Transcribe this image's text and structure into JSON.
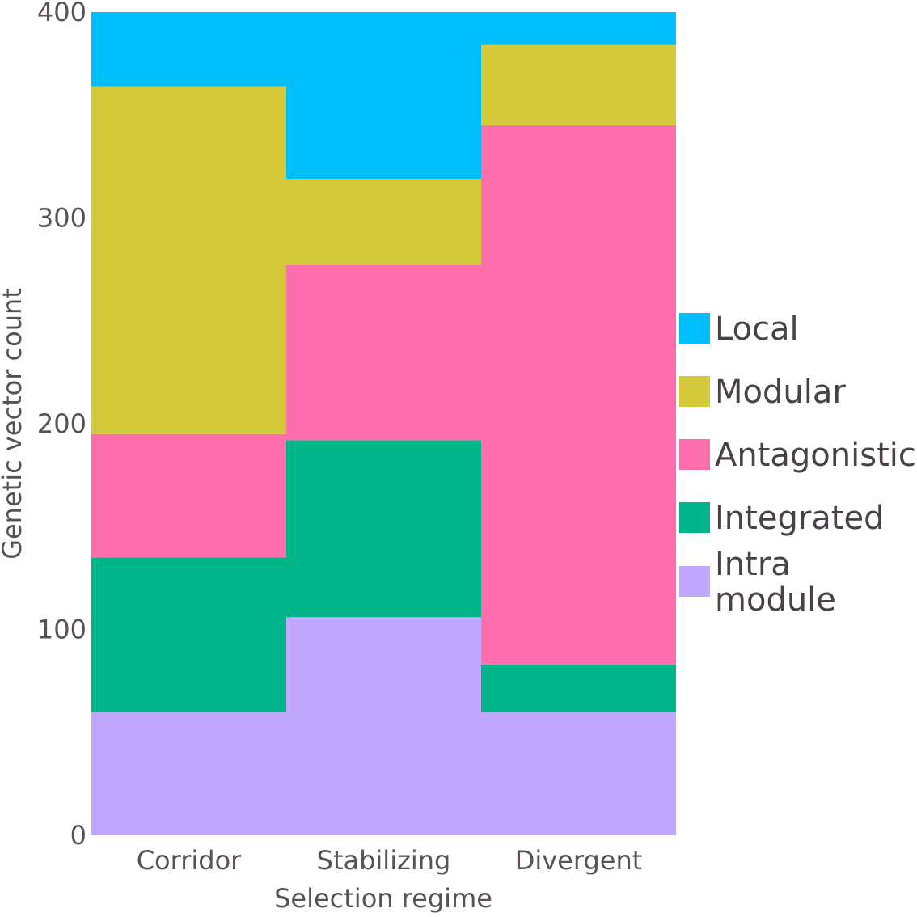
{
  "chart_data": {
    "type": "bar",
    "stacked": true,
    "categories": [
      "Corridor",
      "Stabilizing",
      "Divergent"
    ],
    "xlabel": "Selection regime",
    "ylabel": "Genetic vector count",
    "ylim": [
      0,
      400
    ],
    "yticks": [
      "0",
      "100",
      "200",
      "300",
      "400"
    ],
    "grid": true,
    "legend_position": "right",
    "series": [
      {
        "name": "Intra module",
        "legend_lines": [
          "Intra",
          "module"
        ],
        "color": "#bfa8fd",
        "values": [
          60,
          106,
          60
        ]
      },
      {
        "name": "Integrated",
        "legend_lines": [
          "Integrated"
        ],
        "color": "#00b58a",
        "values": [
          75,
          86,
          23
        ]
      },
      {
        "name": "Antagonistic",
        "legend_lines": [
          "Antagonistic"
        ],
        "color": "#ff6eac",
        "values": [
          60,
          85,
          262
        ]
      },
      {
        "name": "Modular",
        "legend_lines": [
          "Modular"
        ],
        "color": "#d4ca39",
        "values": [
          169,
          42,
          39
        ]
      },
      {
        "name": "Local",
        "legend_lines": [
          "Local"
        ],
        "color": "#00bfff",
        "values": [
          36,
          81,
          16
        ]
      }
    ],
    "legend_order": [
      "Local",
      "Modular",
      "Antagonistic",
      "Integrated",
      "Intra module"
    ]
  }
}
